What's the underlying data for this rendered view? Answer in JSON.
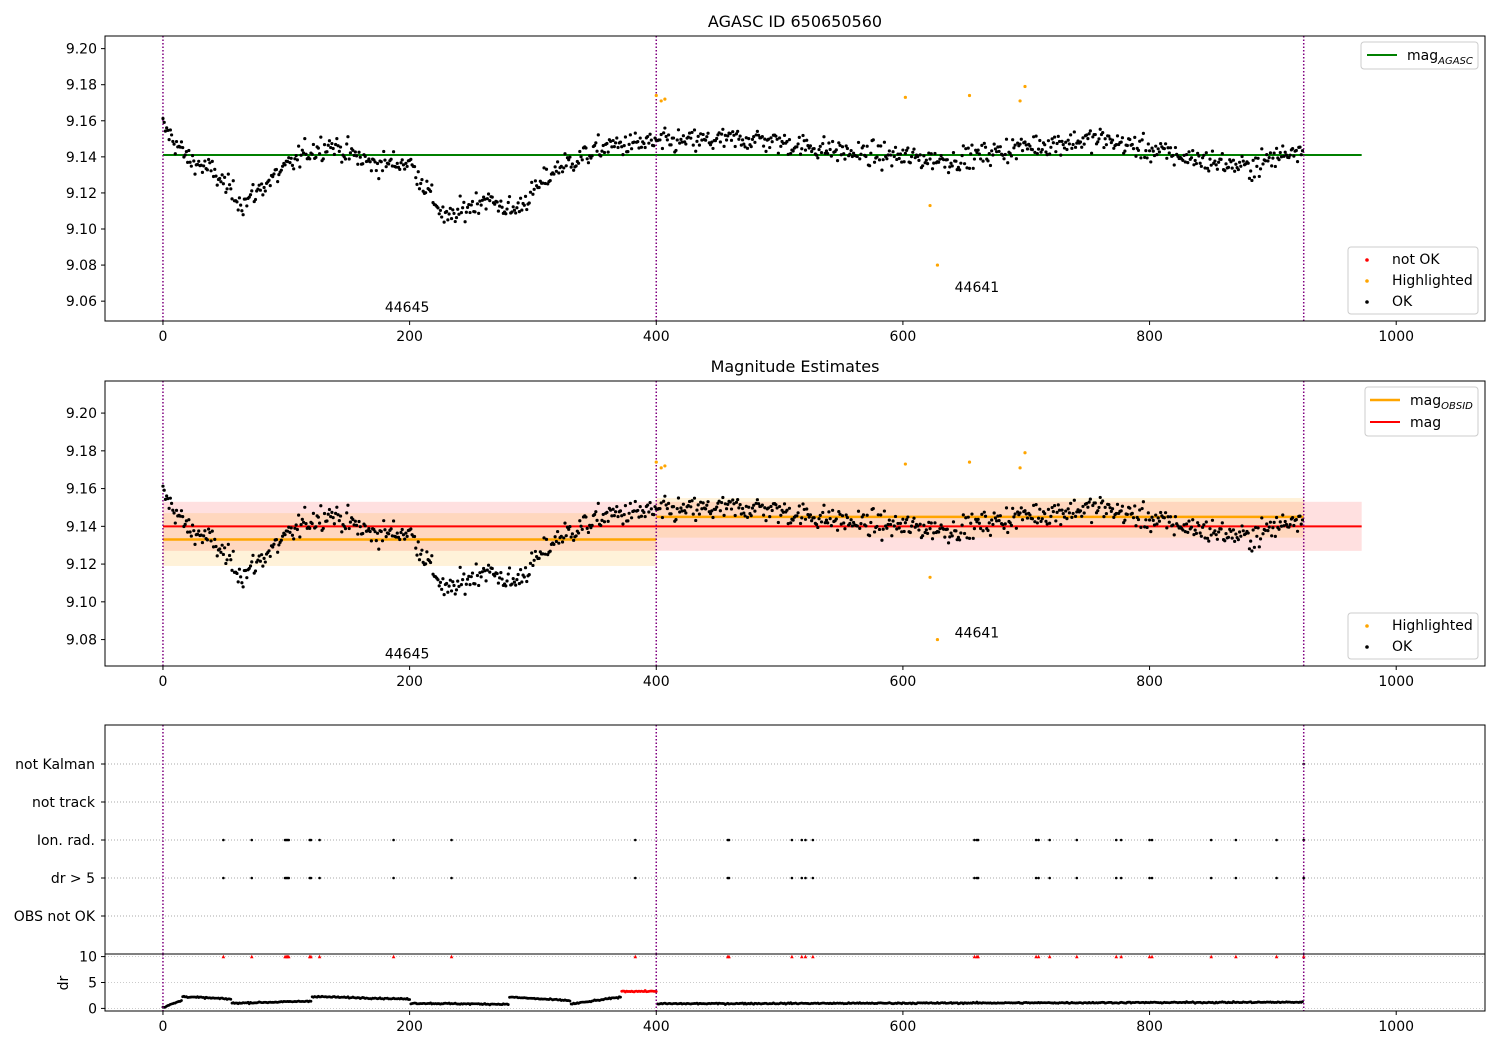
{
  "figure": {
    "obsid_labels": [
      "44645",
      "44641"
    ],
    "observation_boundaries": [
      0,
      400,
      925
    ],
    "colors": {
      "ok": "#000000",
      "highlighted": "#ffa500",
      "not_ok": "#ff0000",
      "mag_agasc": "#008000",
      "mag_obsid": "#ffa500",
      "mag": "#ff0000",
      "boundary": "#800080",
      "flag_marker": "#ff0000"
    }
  },
  "chart_data": [
    {
      "type": "scatter",
      "title": "AGASC ID 650650560",
      "xlabel": "",
      "ylabel": "",
      "xlim": [
        -47,
        1072
      ],
      "ylim": [
        9.049,
        9.207
      ],
      "xticks": [
        0,
        200,
        400,
        600,
        800,
        1000
      ],
      "yticks": [
        "9.06",
        "9.08",
        "9.10",
        "9.12",
        "9.14",
        "9.16",
        "9.18",
        "9.20"
      ],
      "legends": [
        {
          "position": "top-right",
          "entries": [
            {
              "label": "mag",
              "sub": "AGASC",
              "style": "line",
              "color": "#008000"
            }
          ]
        },
        {
          "position": "bottom-right",
          "entries": [
            {
              "label": "not OK",
              "style": "marker",
              "color": "#ff0000"
            },
            {
              "label": "Highlighted",
              "style": "marker",
              "color": "#ffa500"
            },
            {
              "label": "OK",
              "style": "marker",
              "color": "#000000"
            }
          ]
        }
      ],
      "annotations": [
        {
          "text": "44645",
          "x": 198,
          "y": 9.054
        },
        {
          "text": "44641",
          "x": 660,
          "y": 9.065
        }
      ],
      "mag_agasc": {
        "value": 9.141,
        "x": [
          0,
          972
        ]
      },
      "highlighted_points": [
        [
          400,
          9.174
        ],
        [
          404,
          9.171
        ],
        [
          407,
          9.172
        ],
        [
          602,
          9.173
        ],
        [
          622,
          9.113
        ],
        [
          628,
          9.08
        ],
        [
          654,
          9.174
        ],
        [
          695,
          9.171
        ],
        [
          699,
          9.179
        ]
      ],
      "ok_series": {
        "x_range": [
          0,
          925
        ],
        "count": 925,
        "segments": [
          {
            "x": [
              0,
              20
            ],
            "y": [
              9.157,
              9.139
            ]
          },
          {
            "x": [
              20,
              40
            ],
            "y": [
              9.139,
              9.132
            ]
          },
          {
            "x": [
              40,
              65
            ],
            "y": [
              9.132,
              9.114
            ]
          },
          {
            "x": [
              65,
              85
            ],
            "y": [
              9.114,
              9.126
            ]
          },
          {
            "x": [
              85,
              115
            ],
            "y": [
              9.126,
              9.142
            ]
          },
          {
            "x": [
              115,
              135
            ],
            "y": [
              9.142,
              9.147
            ]
          },
          {
            "x": [
              135,
              170
            ],
            "y": [
              9.147,
              9.136
            ]
          },
          {
            "x": [
              170,
              200
            ],
            "y": [
              9.136,
              9.137
            ]
          },
          {
            "x": [
              200,
              230
            ],
            "y": [
              9.137,
              9.105
            ]
          },
          {
            "x": [
              230,
              260
            ],
            "y": [
              9.105,
              9.117
            ]
          },
          {
            "x": [
              260,
              285
            ],
            "y": [
              9.117,
              9.11
            ]
          },
          {
            "x": [
              285,
              320
            ],
            "y": [
              9.11,
              9.134
            ]
          },
          {
            "x": [
              320,
              360
            ],
            "y": [
              9.134,
              9.146
            ]
          },
          {
            "x": [
              360,
              400
            ],
            "y": [
              9.146,
              9.148
            ]
          },
          {
            "x": [
              400,
              480
            ],
            "y": [
              9.148,
              9.15
            ]
          },
          {
            "x": [
              480,
              560
            ],
            "y": [
              9.15,
              9.142
            ]
          },
          {
            "x": [
              560,
              640
            ],
            "y": [
              9.142,
              9.138
            ]
          },
          {
            "x": [
              640,
              700
            ],
            "y": [
              9.138,
              9.146
            ]
          },
          {
            "x": [
              700,
              760
            ],
            "y": [
              9.146,
              9.15
            ]
          },
          {
            "x": [
              760,
              820
            ],
            "y": [
              9.15,
              9.141
            ]
          },
          {
            "x": [
              820,
              880
            ],
            "y": [
              9.141,
              9.134
            ]
          },
          {
            "x": [
              880,
              925
            ],
            "y": [
              9.134,
              9.146
            ]
          }
        ],
        "noise_sd": 0.0065
      }
    },
    {
      "type": "scatter",
      "title": "Magnitude Estimates",
      "xlabel": "",
      "ylabel": "",
      "xlim": [
        -47,
        1072
      ],
      "ylim": [
        9.066,
        9.217
      ],
      "xticks": [
        0,
        200,
        400,
        600,
        800,
        1000
      ],
      "yticks": [
        "9.08",
        "9.10",
        "9.12",
        "9.14",
        "9.16",
        "9.18",
        "9.20"
      ],
      "legends": [
        {
          "position": "top-right",
          "entries": [
            {
              "label": "mag",
              "sub": "OBSID",
              "style": "line",
              "color": "#ffa500"
            },
            {
              "label": "mag",
              "style": "line",
              "color": "#ff0000"
            }
          ]
        },
        {
          "position": "bottom-right",
          "entries": [
            {
              "label": "Highlighted",
              "style": "marker",
              "color": "#ffa500"
            },
            {
              "label": "OK",
              "style": "marker",
              "color": "#000000"
            }
          ]
        }
      ],
      "annotations": [
        {
          "text": "44645",
          "x": 198,
          "y": 9.07
        },
        {
          "text": "44641",
          "x": 660,
          "y": 9.081
        }
      ],
      "mag": {
        "value": 9.14,
        "band": [
          9.127,
          9.153
        ],
        "x": [
          0,
          972
        ]
      },
      "mag_obsid": [
        {
          "x": [
            0,
            400
          ],
          "value": 9.133,
          "band": [
            9.119,
            9.147
          ]
        },
        {
          "x": [
            400,
            925
          ],
          "value": 9.145,
          "band": [
            9.134,
            9.155
          ]
        }
      ]
    },
    {
      "type": "scatter",
      "title": "",
      "xlabel": "",
      "ylabel": "",
      "xlim": [
        -47,
        1072
      ],
      "categories": [
        "OBS not OK",
        "dr > 5",
        "Ion. rad.",
        "not track",
        "not Kalman"
      ],
      "flag_x": [
        49,
        72,
        99,
        100,
        101,
        102,
        119,
        120,
        127,
        187,
        234,
        383,
        458,
        459,
        510,
        518,
        521,
        527,
        658,
        660,
        661,
        708,
        710,
        719,
        741,
        773,
        777,
        800,
        802,
        850,
        870,
        903,
        925
      ],
      "rows": [
        {
          "category": "OBS not OK",
          "x": []
        },
        {
          "category": "dr > 5",
          "x": "flag_x"
        },
        {
          "category": "Ion. rad.",
          "x": "flag_x"
        },
        {
          "category": "not track",
          "x": []
        },
        {
          "category": "not Kalman",
          "x": [
            925
          ]
        }
      ]
    },
    {
      "type": "scatter",
      "title": "",
      "xlabel": "",
      "ylabel": "dr",
      "xlim": [
        -47,
        1072
      ],
      "ylim": [
        -0.5,
        10.5
      ],
      "xticks": [
        0,
        200,
        400,
        600,
        800,
        1000
      ],
      "yticks": [
        0,
        5,
        10
      ],
      "flagged_value": 10,
      "dr_segments": [
        {
          "x": [
            0,
            15
          ],
          "y": [
            0.2,
            1.5
          ]
        },
        {
          "x": [
            15,
            55
          ],
          "y": [
            2.3,
            1.8
          ]
        },
        {
          "x": [
            55,
            120
          ],
          "y": [
            1.0,
            1.4
          ]
        },
        {
          "x": [
            120,
            200
          ],
          "y": [
            2.3,
            1.8
          ]
        },
        {
          "x": [
            200,
            280
          ],
          "y": [
            1.0,
            0.8
          ]
        },
        {
          "x": [
            280,
            330
          ],
          "y": [
            2.2,
            1.5
          ]
        },
        {
          "x": [
            330,
            380
          ],
          "y": [
            0.8,
            2.5
          ]
        },
        {
          "x": [
            380,
            400
          ],
          "y": [
            3.2,
            3.4
          ]
        },
        {
          "x": [
            400,
            925
          ],
          "y": [
            0.9,
            1.2
          ]
        }
      ],
      "dr_red_segment": {
        "x": [
          372,
          400
        ],
        "y": [
          3.3,
          3.3
        ]
      }
    }
  ]
}
